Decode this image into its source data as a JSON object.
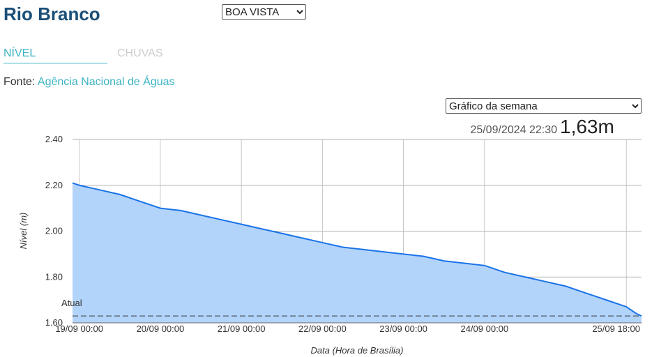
{
  "header": {
    "title": "Rio Branco",
    "station_select": "BOA VISTA"
  },
  "tabs": [
    "NÍVEL",
    "CHUVAS"
  ],
  "source": {
    "label": "Fonte:",
    "link": "Agência Nacional de Águas"
  },
  "period_select": "Gráfico da semana",
  "latest": {
    "time": "25/09/2024 22:30",
    "value": "1,63m"
  },
  "chart_data": {
    "type": "area",
    "y_label": "Nível (m)",
    "x_label": "Data (Hora de Brasília)",
    "color": "#1a73e8",
    "fill": "#b3d4fa",
    "grid": true,
    "x": [
      "18/09 22:00",
      "19/09 00:00",
      "19/09 06:00",
      "19/09 12:00",
      "19/09 18:00",
      "20/09 00:00",
      "20/09 06:00",
      "20/09 12:00",
      "20/09 18:00",
      "21/09 00:00",
      "21/09 06:00",
      "21/09 12:00",
      "21/09 18:00",
      "22/09 00:00",
      "22/09 06:00",
      "22/09 12:00",
      "22/09 18:00",
      "23/09 00:00",
      "23/09 06:00",
      "23/09 12:00",
      "23/09 18:00",
      "24/09 00:00",
      "24/09 06:00",
      "24/09 12:00",
      "24/09 18:00",
      "25/09 00:00",
      "25/09 06:00",
      "25/09 12:00",
      "25/09 18:00",
      "25/09 21:00",
      "25/09 22:30"
    ],
    "values": [
      2.21,
      2.2,
      2.18,
      2.16,
      2.13,
      2.1,
      2.09,
      2.07,
      2.05,
      2.03,
      2.01,
      1.99,
      1.97,
      1.95,
      1.93,
      1.92,
      1.91,
      1.9,
      1.89,
      1.87,
      1.86,
      1.85,
      1.82,
      1.8,
      1.78,
      1.76,
      1.73,
      1.7,
      1.67,
      1.64,
      1.63
    ],
    "xlim": [
      "18/09 22:00",
      "25/09 22:30"
    ],
    "xticks": [
      "19/09 00:00",
      "20/09 00:00",
      "21/09 00:00",
      "22/09 00:00",
      "23/09 00:00",
      "24/09 00:00",
      "25/09 18:00"
    ],
    "ylim": [
      1.6,
      2.4
    ],
    "yticks": [
      {
        "value": 1.6,
        "label": "1.60"
      },
      {
        "value": 1.8,
        "label": "1.80"
      },
      {
        "value": 2.0,
        "label": "2.00"
      },
      {
        "value": 2.2,
        "label": "2.20"
      },
      {
        "value": 2.4,
        "label": "2.40"
      }
    ],
    "reference_line": {
      "value": 1.63,
      "label": "Atual"
    }
  }
}
